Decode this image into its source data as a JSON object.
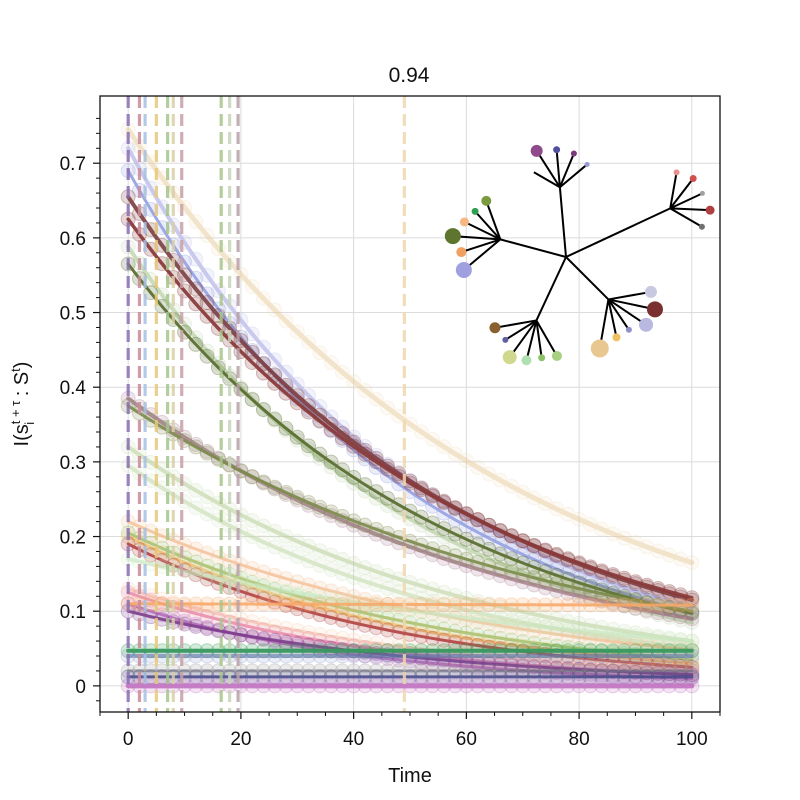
{
  "chart_data": {
    "type": "line",
    "title": "0.94",
    "xlabel": "Time",
    "ylabel": "I(s_i^{t+τ} : S^t)",
    "xlim": [
      -5,
      105
    ],
    "ylim": [
      -0.035,
      0.79
    ],
    "xticks": [
      0,
      20,
      40,
      60,
      80,
      100
    ],
    "xtick_labels": [
      "0",
      "20",
      "40",
      "60",
      "80",
      "100"
    ],
    "yticks": [
      0,
      0.1,
      0.2,
      0.3,
      0.4,
      0.5,
      0.6,
      0.7
    ],
    "ytick_labels": [
      "0",
      "0.1",
      "0.2",
      "0.3",
      "0.4",
      "0.5",
      "0.6",
      "0.7"
    ],
    "grid": true,
    "legend": "none",
    "vlines": [
      {
        "x": 0,
        "color": "#8a6fb3"
      },
      {
        "x": 2,
        "color": "#c98b9a"
      },
      {
        "x": 3,
        "color": "#a8c0e0"
      },
      {
        "x": 5,
        "color": "#e8c87a"
      },
      {
        "x": 7,
        "color": "#a4c68c"
      },
      {
        "x": 8,
        "color": "#d9d0a8"
      },
      {
        "x": 9.5,
        "color": "#c7a0a6"
      },
      {
        "x": 16.5,
        "color": "#a8c68a"
      },
      {
        "x": 18,
        "color": "#c6d4b8"
      },
      {
        "x": 19.5,
        "color": "#b8a0a8"
      },
      {
        "x": 49,
        "color": "#f0d8b0"
      }
    ],
    "series": [
      {
        "y0": 0.745,
        "y100": 0.165,
        "color": "#e8cfa0",
        "opacity": 0.55,
        "width": 5
      },
      {
        "y0": 0.72,
        "y100": 0.105,
        "color": "#b8b8e8",
        "opacity": 0.75,
        "width": 4
      },
      {
        "y0": 0.69,
        "y100": 0.098,
        "color": "#8c9ae0",
        "opacity": 0.85,
        "width": 3
      },
      {
        "y0": 0.655,
        "y100": 0.115,
        "color": "#7a3c40",
        "opacity": 0.9,
        "width": 4
      },
      {
        "y0": 0.625,
        "y100": 0.118,
        "color": "#8a3a3a",
        "opacity": 0.95,
        "width": 3.5
      },
      {
        "y0": 0.588,
        "y100": 0.085,
        "color": "#a8c690",
        "opacity": 0.6,
        "width": 4
      },
      {
        "y0": 0.565,
        "y100": 0.097,
        "color": "#5a6e30",
        "opacity": 0.95,
        "width": 3
      },
      {
        "y0": 0.385,
        "y100": 0.09,
        "color": "#9a6a80",
        "opacity": 0.75,
        "width": 4
      },
      {
        "y0": 0.375,
        "y100": 0.1,
        "color": "#7a8a48",
        "opacity": 0.9,
        "width": 3
      },
      {
        "y0": 0.32,
        "y100": 0.06,
        "color": "#b8d09a",
        "opacity": 0.6,
        "width": 4
      },
      {
        "y0": 0.295,
        "y100": 0.05,
        "color": "#c0d8a8",
        "opacity": 0.6,
        "width": 4
      },
      {
        "y0": 0.22,
        "y100": 0.048,
        "color": "#f2b888",
        "opacity": 0.75,
        "width": 3
      },
      {
        "y0": 0.205,
        "y100": 0.035,
        "color": "#8ec06a",
        "opacity": 0.85,
        "width": 3
      },
      {
        "y0": 0.2,
        "y100": 0.03,
        "color": "#f0c070",
        "opacity": 0.85,
        "width": 3
      },
      {
        "y0": 0.19,
        "y100": 0.025,
        "color": "#b04040",
        "opacity": 0.9,
        "width": 3
      },
      {
        "y0": 0.17,
        "y100": 0.06,
        "color": "#c8e8c0",
        "opacity": 0.7,
        "width": 4
      },
      {
        "y0": 0.13,
        "y100": 0.02,
        "color": "#f4c8a8",
        "opacity": 0.7,
        "width": 3
      },
      {
        "y0": 0.125,
        "y100": 0.015,
        "color": "#e888a8",
        "opacity": 0.85,
        "width": 3
      },
      {
        "y0": 0.11,
        "y100": 0.01,
        "color": "#c070c0",
        "opacity": 0.85,
        "width": 3
      },
      {
        "y0": 0.1,
        "y100": 0.015,
        "color": "#7a3a8a",
        "opacity": 0.9,
        "width": 3
      },
      {
        "y0": 0.11,
        "y100": 0.108,
        "color": "#f8a868",
        "opacity": 0.9,
        "width": 3
      },
      {
        "y0": 0.047,
        "y100": 0.047,
        "color": "#30a050",
        "opacity": 0.95,
        "width": 4
      },
      {
        "y0": 0.04,
        "y100": 0.04,
        "color": "#6070b0",
        "opacity": 0.6,
        "width": 4
      },
      {
        "y0": 0.02,
        "y100": 0.02,
        "color": "#808080",
        "opacity": 0.7,
        "width": 3
      },
      {
        "y0": 0.012,
        "y100": 0.012,
        "color": "#4a4a8a",
        "opacity": 0.9,
        "width": 3
      },
      {
        "y0": 0.0,
        "y100": 0.0,
        "color": "#c070c0",
        "opacity": 0.9,
        "width": 5
      }
    ],
    "inset_tree": {
      "center": "inset-root",
      "nodes": [
        {
          "id": "inset-root",
          "parent": null,
          "color": "#000000",
          "size": 0
        },
        {
          "id": "n-a",
          "parent": "inset-root",
          "color": "#000000",
          "size": 0
        },
        {
          "id": "n-a1",
          "parent": "n-a",
          "color": "#000000",
          "size": 0
        },
        {
          "id": "leaf-purple",
          "parent": "n-a",
          "color": "#8e4a8a",
          "size": 6
        },
        {
          "id": "leaf-indigo",
          "parent": "n-a",
          "color": "#5050a0",
          "size": 3.5
        },
        {
          "id": "leaf-darkpink",
          "parent": "n-a",
          "color": "#7a3a7a",
          "size": 3
        },
        {
          "id": "leaf-periwinkle-small",
          "parent": "n-a",
          "color": "#9a9ad0",
          "size": 2.5
        },
        {
          "id": "n-b",
          "parent": "inset-root",
          "color": "#000000",
          "size": 0
        },
        {
          "id": "n-b1",
          "parent": "n-b",
          "color": "#000000",
          "size": 0
        },
        {
          "id": "leaf-salmon",
          "parent": "n-b1",
          "color": "#e89090",
          "size": 3
        },
        {
          "id": "leaf-red",
          "parent": "n-b1",
          "color": "#d05050",
          "size": 3.5
        },
        {
          "id": "leaf-gray1",
          "parent": "n-b1",
          "color": "#a0a0a0",
          "size": 2.5
        },
        {
          "id": "leaf-darkred",
          "parent": "n-b1",
          "color": "#b04040",
          "size": 4.5
        },
        {
          "id": "leaf-gray2",
          "parent": "n-b1",
          "color": "#707070",
          "size": 3
        },
        {
          "id": "n-c",
          "parent": "inset-root",
          "color": "#000000",
          "size": 0
        },
        {
          "id": "leaf-lavender-big",
          "parent": "n-c",
          "color": "#a0a0e0",
          "size": 8
        },
        {
          "id": "leaf-orange",
          "parent": "n-c",
          "color": "#f0a060",
          "size": 5
        },
        {
          "id": "leaf-olive-big",
          "parent": "n-c",
          "color": "#5e7530",
          "size": 8
        },
        {
          "id": "leaf-peach",
          "parent": "n-c",
          "color": "#f4b880",
          "size": 4.5
        },
        {
          "id": "leaf-green",
          "parent": "n-c",
          "color": "#30a050",
          "size": 3.5
        },
        {
          "id": "leaf-olive-small",
          "parent": "n-c",
          "color": "#7a9a40",
          "size": 5
        },
        {
          "id": "n-d",
          "parent": "inset-root",
          "color": "#000000",
          "size": 0
        },
        {
          "id": "leaf-lightgreen",
          "parent": "n-d",
          "color": "#a8d080",
          "size": 5
        },
        {
          "id": "leaf-limegreen",
          "parent": "n-d",
          "color": "#8ec06a",
          "size": 3.5
        },
        {
          "id": "leaf-mint",
          "parent": "n-d",
          "color": "#b0e0b0",
          "size": 5
        },
        {
          "id": "leaf-khaki",
          "parent": "n-d",
          "color": "#d0d890",
          "size": 7
        },
        {
          "id": "leaf-slate",
          "parent": "n-d",
          "color": "#6060a0",
          "size": 3
        },
        {
          "id": "leaf-brown",
          "parent": "n-d",
          "color": "#8a6030",
          "size": 5.5
        },
        {
          "id": "n-e",
          "parent": "inset-root",
          "color": "#000000",
          "size": 0
        },
        {
          "id": "leaf-gray-lav",
          "parent": "n-e",
          "color": "#c8c8e0",
          "size": 6
        },
        {
          "id": "leaf-maroon-big",
          "parent": "n-e",
          "color": "#7a3030",
          "size": 8
        },
        {
          "id": "leaf-lavender-mid",
          "parent": "n-e",
          "color": "#b8b8e0",
          "size": 7
        },
        {
          "id": "leaf-lilac",
          "parent": "n-e",
          "color": "#9090c8",
          "size": 3
        },
        {
          "id": "leaf-gold",
          "parent": "n-e",
          "color": "#f0c060",
          "size": 4
        },
        {
          "id": "leaf-sand-big",
          "parent": "n-e",
          "color": "#e8c890",
          "size": 9
        }
      ]
    }
  }
}
